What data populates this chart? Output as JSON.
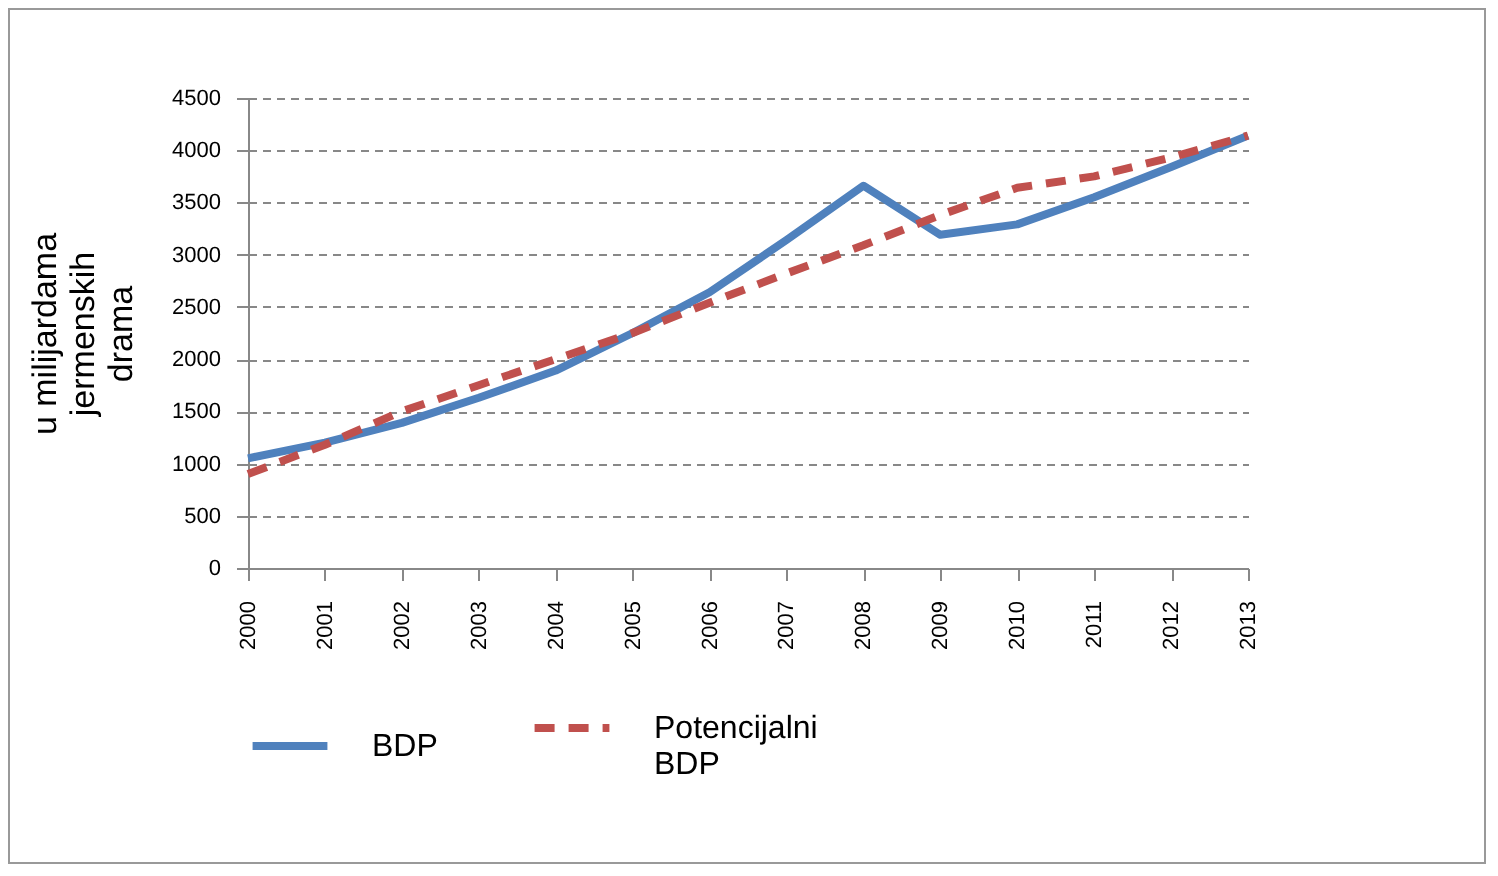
{
  "chart_data": {
    "type": "line",
    "ylabel": "u milijardama jermenskih drama",
    "categories": [
      "2000",
      "2001",
      "2002",
      "2003",
      "2004",
      "2005",
      "2006",
      "2007",
      "2008",
      "2009",
      "2010",
      "2011",
      "2012",
      "2013"
    ],
    "series": [
      {
        "name": "BDP",
        "color": "#4f81bd",
        "line_style": "solid",
        "values": [
          1050,
          1200,
          1390,
          1630,
          1890,
          2250,
          2640,
          3140,
          3660,
          3190,
          3290,
          3550,
          3840,
          4140
        ]
      },
      {
        "name": "Potencijalni BDP",
        "color": "#c0504d",
        "line_style": "dashed",
        "values": [
          900,
          1180,
          1500,
          1750,
          2000,
          2250,
          2540,
          2820,
          3090,
          3380,
          3640,
          3750,
          3930,
          4140
        ]
      }
    ],
    "ylim": [
      0,
      4500
    ],
    "yticks": [
      0,
      500,
      1000,
      1500,
      2000,
      2500,
      3000,
      3500,
      4000,
      4500
    ],
    "grid": "y",
    "legend": "bottom",
    "marker": "none"
  }
}
